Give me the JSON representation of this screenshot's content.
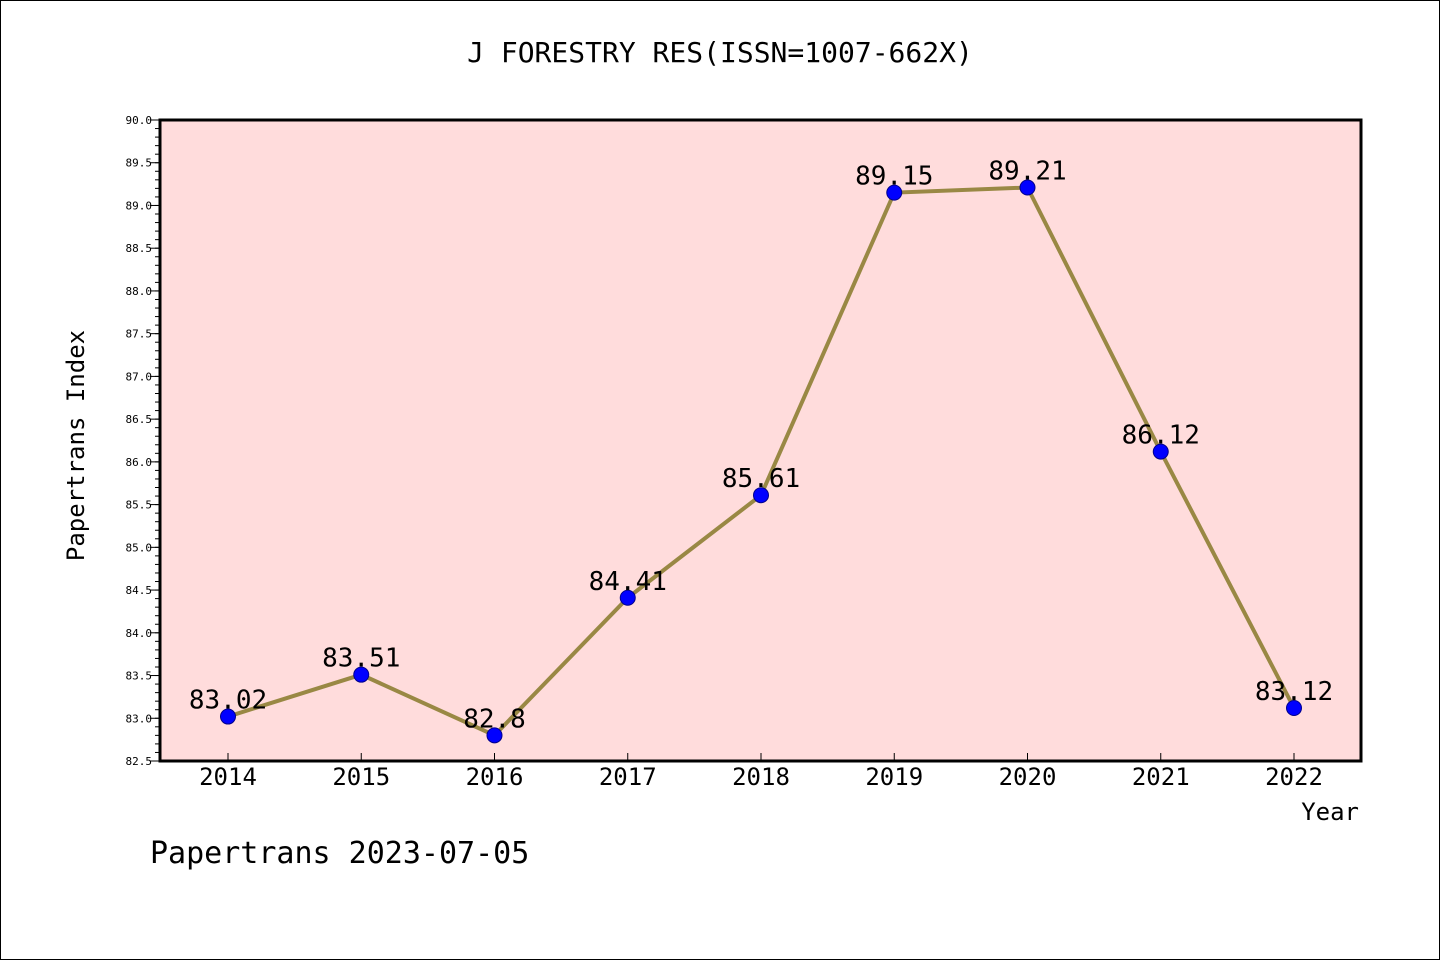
{
  "chart_data": {
    "type": "line",
    "title": "J FORESTRY RES(ISSN=1007-662X)",
    "xlabel": "Year",
    "ylabel": "Papertrans Index",
    "categories": [
      "2014",
      "2015",
      "2016",
      "2017",
      "2018",
      "2019",
      "2020",
      "2021",
      "2022"
    ],
    "series": [
      {
        "values": [
          83.02,
          83.51,
          82.8,
          84.41,
          85.61,
          89.15,
          89.21,
          86.12,
          83.12
        ],
        "labels": [
          "83.02",
          "83.51",
          "82.8",
          "84.41",
          "85.61",
          "89.15",
          "89.21",
          "86.12",
          "83.12"
        ]
      }
    ],
    "ylim": [
      82.5,
      90.0
    ],
    "yticks": [
      "82.5",
      "83.0",
      "83.5",
      "84.0",
      "84.5",
      "85.0",
      "85.5",
      "86.0",
      "86.5",
      "87.0",
      "87.5",
      "88.0",
      "88.5",
      "89.0",
      "89.5",
      "90.0"
    ],
    "grid": false,
    "colors": {
      "plot_background": "#ffdcdc",
      "line": "#998844",
      "marker": "#0000ff"
    }
  },
  "footer": {
    "watermark": "Papertrans 2023-07-05"
  }
}
